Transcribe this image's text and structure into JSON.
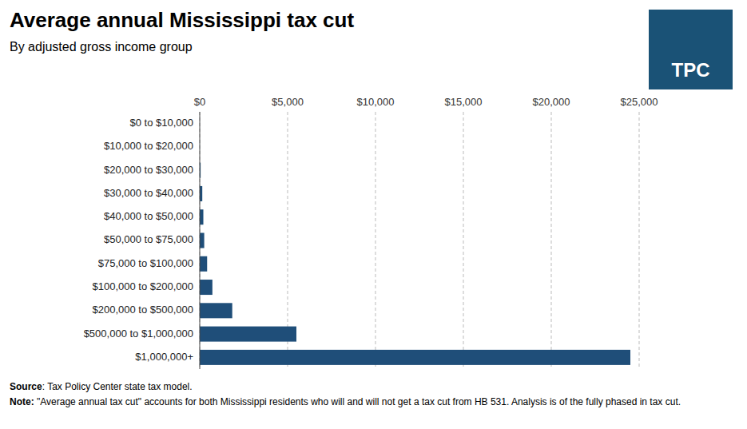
{
  "chart_data": {
    "type": "bar",
    "orientation": "horizontal",
    "title": "Average annual Mississippi tax cut",
    "subtitle": "By adjusted gross income group",
    "categories": [
      "$0 to $10,000",
      "$10,000 to $20,000",
      "$20,000 to $30,000",
      "$30,000 to $40,000",
      "$40,000 to $50,000",
      "$50,000 to $75,000",
      "$75,000 to $100,000",
      "$100,000 to $200,000",
      "$200,000 to $500,000",
      "$500,000 to $1,000,000",
      "$1,000,000+"
    ],
    "values": [
      2,
      3,
      50,
      145,
      205,
      255,
      420,
      720,
      1850,
      5500,
      24500
    ],
    "color": "#1f4e79",
    "xlim": [
      0,
      25000
    ],
    "xticks": [
      {
        "value": 0,
        "label": "$0"
      },
      {
        "value": 5000,
        "label": "$5,000"
      },
      {
        "value": 10000,
        "label": "$10,000"
      },
      {
        "value": 15000,
        "label": "$15,000"
      },
      {
        "value": 20000,
        "label": "$20,000"
      },
      {
        "value": 25000,
        "label": "$25,000"
      }
    ],
    "grid": true,
    "annotations": [
      "Source: Tax Policy Center state tax model.",
      "Note: \"Average annual tax cut\" accounts for both Mississippi residents who will and will not get a tax cut from HB 531. Analysis is of the fully phased in tax cut.",
      "TPC"
    ]
  }
}
